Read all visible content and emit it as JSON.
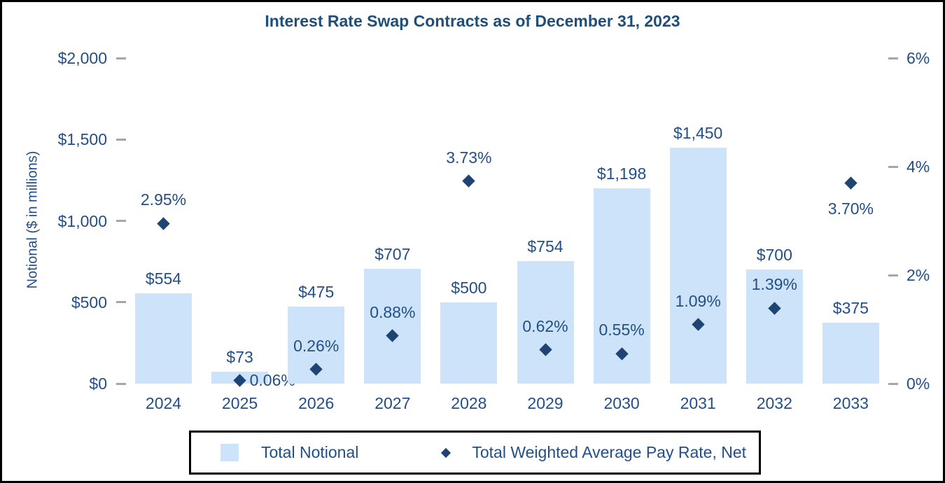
{
  "title": "Interest Rate Swap Contracts as of December 31, 2023",
  "y_axis": {
    "label": "Notional ($ in millions)",
    "ticks": [
      {
        "value": 2000,
        "label": "$2,000"
      },
      {
        "value": 1500,
        "label": "$1,500"
      },
      {
        "value": 1000,
        "label": "$1,000"
      },
      {
        "value": 500,
        "label": "$500"
      },
      {
        "value": 0,
        "label": "$0"
      }
    ]
  },
  "y2_axis": {
    "ticks": [
      {
        "value": 6,
        "label": "6%"
      },
      {
        "value": 4,
        "label": "4%"
      },
      {
        "value": 2,
        "label": "2%"
      },
      {
        "value": 0,
        "label": "0%"
      }
    ]
  },
  "legend": {
    "bar_label": "Total Notional",
    "marker_label": "Total Weighted Average Pay Rate, Net"
  },
  "colors": {
    "bar": "#cde3fa",
    "marker": "#1d4473",
    "text": "#234f85",
    "title_text": "#1f4e79",
    "tick_dash": "#a6a6a6",
    "border": "#000000"
  },
  "chart_data": {
    "type": "bar",
    "subtype": "dual-axis bar + diamond scatter",
    "title": "Interest Rate Swap Contracts as of December 31, 2023",
    "xlabel": "",
    "ylabel": "Notional ($ in millions)",
    "ylim_left": [
      0,
      2000
    ],
    "ylim_right_percent": [
      0,
      6
    ],
    "grid": false,
    "legend_position": "bottom",
    "categories": [
      "2024",
      "2025",
      "2026",
      "2027",
      "2028",
      "2029",
      "2030",
      "2031",
      "2032",
      "2033"
    ],
    "series": [
      {
        "name": "Total Notional",
        "type": "bar",
        "axis": "left",
        "values": [
          554,
          73,
          475,
          707,
          500,
          754,
          1198,
          1450,
          700,
          375
        ],
        "labels": [
          "$554",
          "$73",
          "$475",
          "$707",
          "$500",
          "$754",
          "$1,198",
          "$1,450",
          "$700",
          "$375"
        ]
      },
      {
        "name": "Total Weighted Average Pay Rate, Net",
        "type": "scatter",
        "marker": "diamond",
        "axis": "right",
        "values": [
          2.95,
          0.06,
          0.26,
          0.88,
          3.73,
          0.62,
          0.55,
          1.09,
          1.39,
          3.7
        ],
        "labels": [
          "2.95%",
          "0.06%",
          "0.26%",
          "0.88%",
          "3.73%",
          "0.62%",
          "0.55%",
          "1.09%",
          "1.39%",
          "3.70%"
        ],
        "label_placement": [
          "above",
          "right",
          "above",
          "above",
          "above",
          "above",
          "above",
          "above",
          "above",
          "below"
        ]
      }
    ]
  }
}
